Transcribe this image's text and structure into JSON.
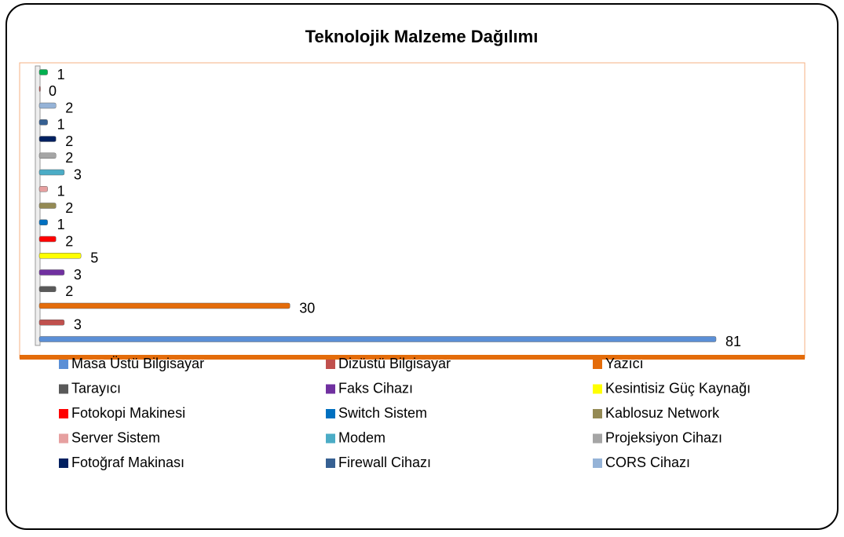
{
  "chart_data": {
    "type": "bar",
    "orientation": "horizontal",
    "title": "Teknolojik Malzeme Dağılımı",
    "categories": [
      "Masa Üstü Bilgisayar",
      "Dizüstü Bilgisayar",
      "Yazıcı",
      "Tarayıcı",
      "Faks Cihazı",
      "Kesintisiz Güç Kaynağı",
      "Fotokopi Makinesi",
      "Switch Sistem",
      "Kablosuz Network",
      "Server Sistem",
      "Modem",
      "Projeksiyon Cihazı",
      "Fotoğraf Makinası",
      "Firewall Cihazı",
      "CORS Cihazı",
      null,
      null
    ],
    "values": [
      81,
      3,
      30,
      2,
      3,
      5,
      2,
      1,
      2,
      1,
      3,
      2,
      2,
      1,
      2,
      0,
      1
    ],
    "colors": [
      "#5b8fd6",
      "#c0504d",
      "#e46c0a",
      "#595959",
      "#7030a0",
      "#ffff00",
      "#ff0000",
      "#0070c0",
      "#948a54",
      "#e6a0a0",
      "#4bacc6",
      "#a5a5a5",
      "#002060",
      "#366092",
      "#95b3d7",
      "#c0504d",
      "#00b050"
    ],
    "xlim": [
      0,
      81
    ],
    "legend": "bottom"
  }
}
